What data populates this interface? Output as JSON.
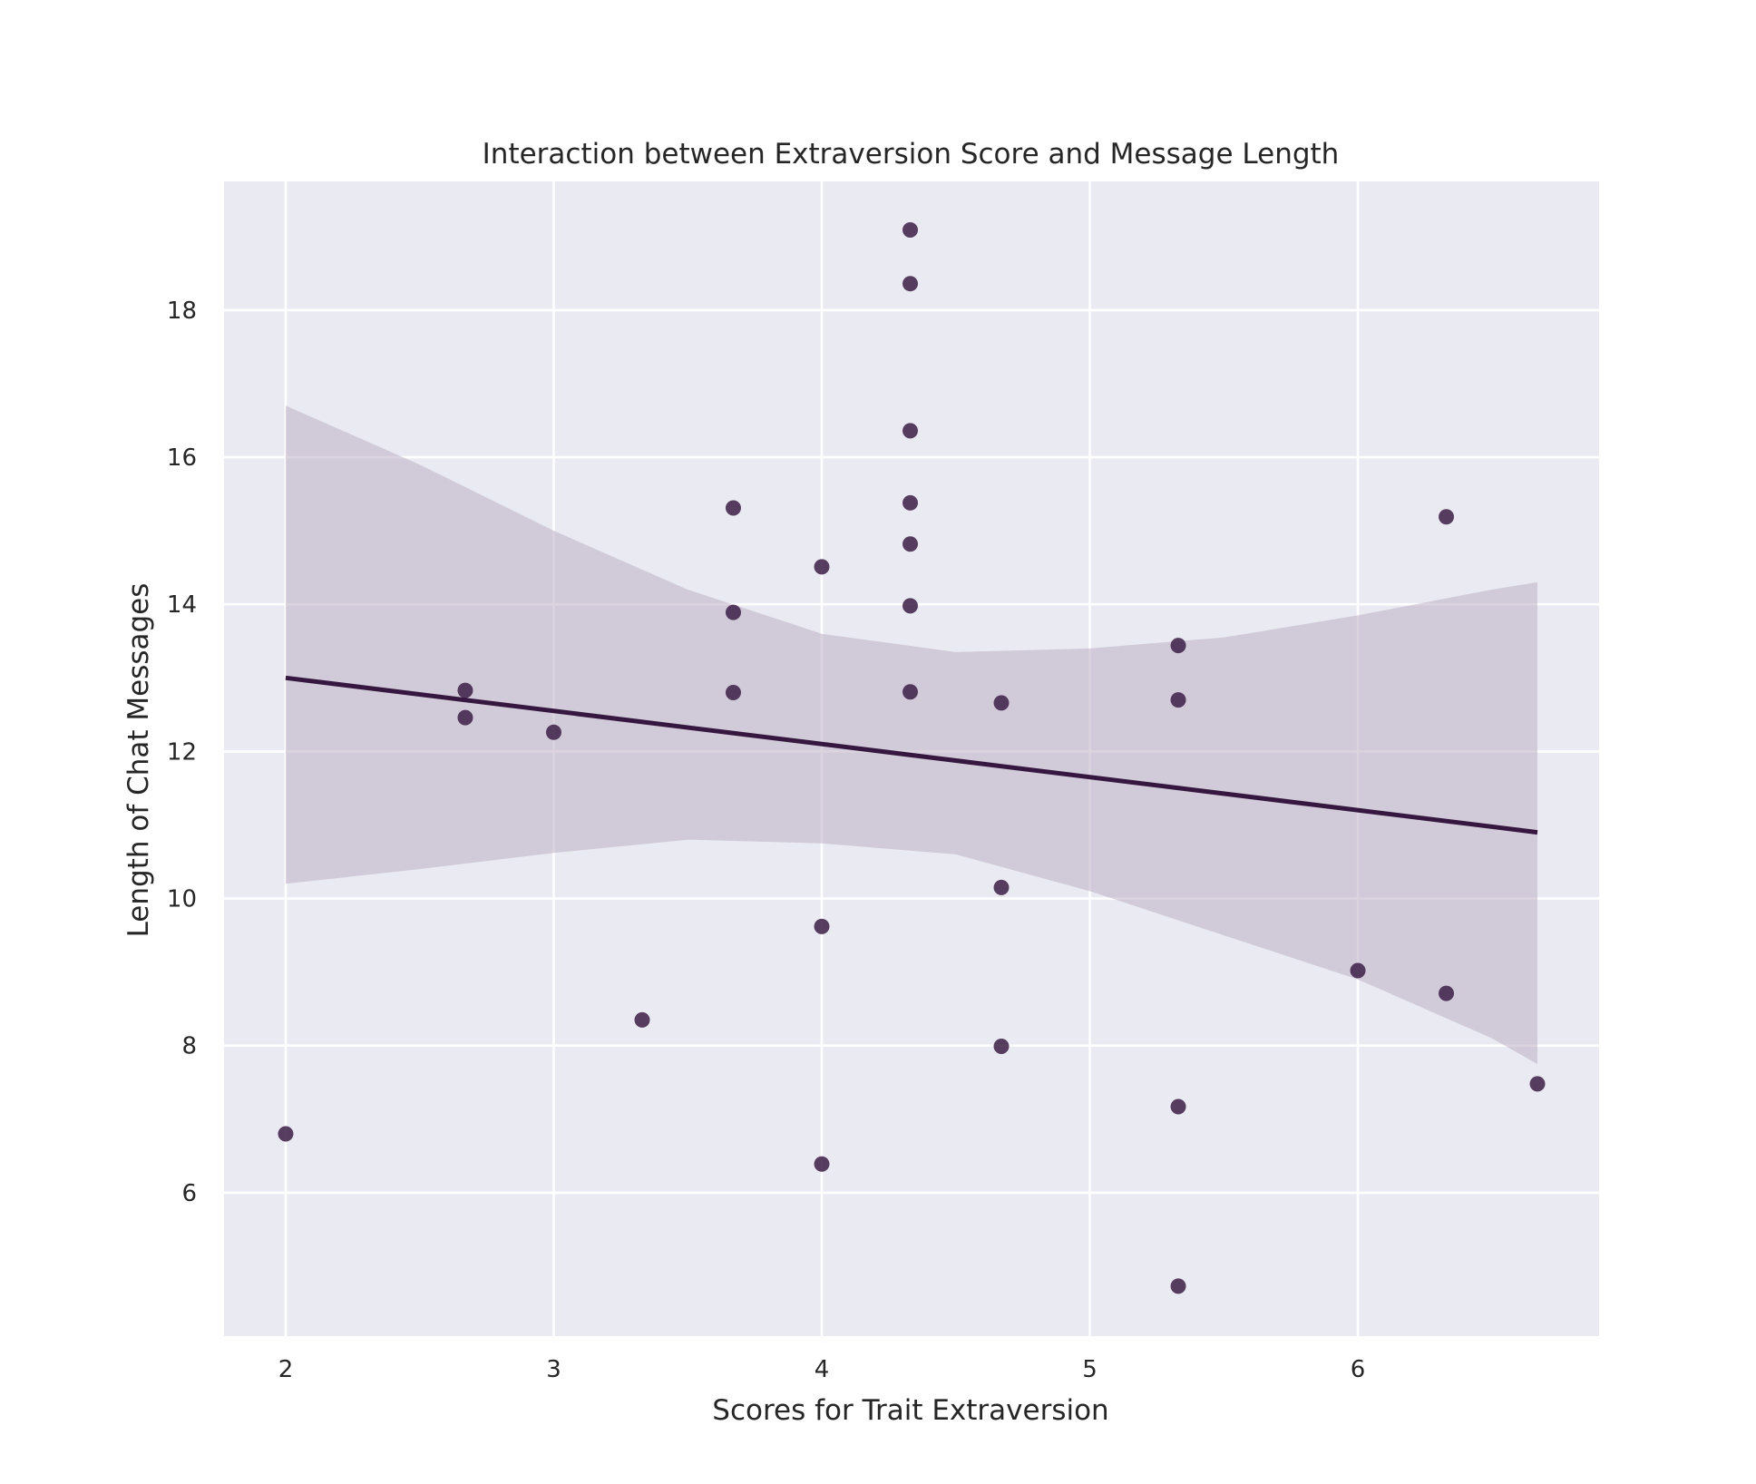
{
  "chart_data": {
    "type": "scatter",
    "title": "Interaction between Extraversion Score and Message Length",
    "xlabel": "Scores for Trait Extraversion",
    "ylabel": "Length of Chat Messages",
    "xlim": [
      1.77,
      6.9
    ],
    "ylim": [
      4.05,
      19.75
    ],
    "xticks": [
      2,
      3,
      4,
      5,
      6
    ],
    "yticks": [
      6,
      8,
      10,
      12,
      14,
      16,
      18
    ],
    "grid": true,
    "colors": {
      "background": "#eaeaf2",
      "grid": "#ffffff",
      "point": "#3c1f45",
      "line": "#35173f",
      "band": "#b7a9bf"
    },
    "points": [
      {
        "x": 2.0,
        "y": 6.8
      },
      {
        "x": 2.67,
        "y": 12.83
      },
      {
        "x": 2.67,
        "y": 12.46
      },
      {
        "x": 3.0,
        "y": 12.26
      },
      {
        "x": 3.33,
        "y": 8.35
      },
      {
        "x": 3.67,
        "y": 15.31
      },
      {
        "x": 3.67,
        "y": 13.89
      },
      {
        "x": 3.67,
        "y": 12.8
      },
      {
        "x": 4.0,
        "y": 14.51
      },
      {
        "x": 4.0,
        "y": 9.62
      },
      {
        "x": 4.0,
        "y": 6.39
      },
      {
        "x": 4.33,
        "y": 19.09
      },
      {
        "x": 4.33,
        "y": 18.36
      },
      {
        "x": 4.33,
        "y": 16.36
      },
      {
        "x": 4.33,
        "y": 15.38
      },
      {
        "x": 4.33,
        "y": 14.82
      },
      {
        "x": 4.33,
        "y": 13.98
      },
      {
        "x": 4.33,
        "y": 12.81
      },
      {
        "x": 4.67,
        "y": 12.66
      },
      {
        "x": 4.67,
        "y": 10.15
      },
      {
        "x": 4.67,
        "y": 7.99
      },
      {
        "x": 5.33,
        "y": 13.44
      },
      {
        "x": 5.33,
        "y": 12.7
      },
      {
        "x": 5.33,
        "y": 7.17
      },
      {
        "x": 5.33,
        "y": 4.73
      },
      {
        "x": 6.0,
        "y": 9.02
      },
      {
        "x": 6.33,
        "y": 15.19
      },
      {
        "x": 6.33,
        "y": 8.71
      },
      {
        "x": 6.67,
        "y": 7.48
      }
    ],
    "regression": {
      "x": [
        2.0,
        6.67
      ],
      "y": [
        13.0,
        10.9
      ]
    },
    "confidence_band": {
      "x": [
        2.0,
        2.5,
        3.0,
        3.5,
        4.0,
        4.5,
        5.0,
        5.5,
        6.0,
        6.5,
        6.67
      ],
      "upper": [
        16.7,
        15.9,
        15.0,
        14.2,
        13.6,
        13.35,
        13.4,
        13.55,
        13.85,
        14.2,
        14.3
      ],
      "lower": [
        10.2,
        10.4,
        10.62,
        10.8,
        10.75,
        10.6,
        10.1,
        9.5,
        8.9,
        8.1,
        7.75
      ]
    }
  }
}
